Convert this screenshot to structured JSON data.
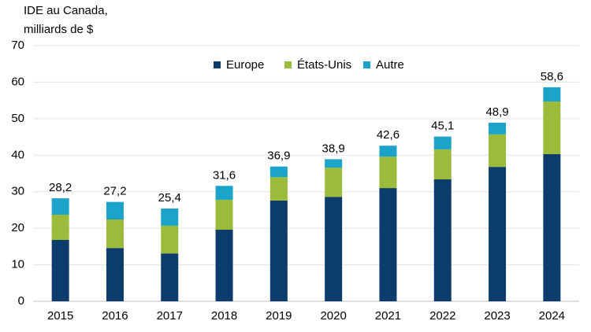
{
  "chart_data": {
    "type": "stacked_bar",
    "y_label": [
      "IDE au Canada,",
      "milliards de $"
    ],
    "categories": [
      "2015",
      "2016",
      "2017",
      "2018",
      "2019",
      "2020",
      "2021",
      "2022",
      "2023",
      "2024"
    ],
    "series": [
      {
        "name": "Europe",
        "color": "#0b3c6b",
        "values": [
          16.8,
          14.6,
          13.1,
          19.6,
          27.6,
          28.6,
          31.0,
          33.4,
          36.8,
          40.3
        ]
      },
      {
        "name": "États-Unis",
        "color": "#9bbb3b",
        "values": [
          6.9,
          7.8,
          7.6,
          8.2,
          6.4,
          8.0,
          8.6,
          8.2,
          8.9,
          14.4
        ]
      },
      {
        "name": "Autre",
        "color": "#1ba3c9",
        "values": [
          4.5,
          4.8,
          4.7,
          3.8,
          2.9,
          2.3,
          3.0,
          3.5,
          3.2,
          3.9
        ]
      }
    ],
    "totals": [
      28.2,
      27.2,
      25.4,
      31.6,
      36.9,
      38.9,
      42.6,
      45.1,
      48.9,
      58.6
    ],
    "total_labels": [
      "28,2",
      "27,2",
      "25,4",
      "31,6",
      "36,9",
      "38,9",
      "42,6",
      "45,1",
      "48,9",
      "58,6"
    ],
    "ylim": [
      0,
      70
    ],
    "yticks": [
      0,
      10,
      20,
      30,
      40,
      50,
      60,
      70
    ],
    "grid": true,
    "legend": "top"
  }
}
